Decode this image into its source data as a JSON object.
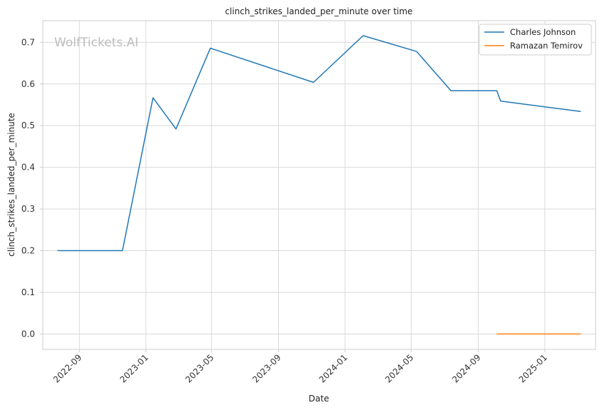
{
  "chart_data": {
    "type": "line",
    "title": "clinch_strikes_landed_per_minute over time",
    "xlabel": "Date",
    "ylabel": "clinch_strikes_landed_per_minute",
    "watermark": "WolfTickets.AI",
    "x_ticks": [
      "2022-09",
      "2023-01",
      "2023-05",
      "2023-09",
      "2024-01",
      "2024-05",
      "2024-09",
      "2025-01"
    ],
    "y_ticks": [
      "0.0",
      "0.1",
      "0.2",
      "0.3",
      "0.4",
      "0.5",
      "0.6",
      "0.7"
    ],
    "xlim": [
      "2022-06-26",
      "2025-04-04"
    ],
    "ylim": [
      -0.037,
      0.752
    ],
    "grid": true,
    "legend_position": "top-right",
    "series": [
      {
        "name": "Charles Johnson",
        "color": "#1f77b4",
        "points": [
          {
            "x": "2022-07-23",
            "y": 0.2
          },
          {
            "x": "2022-11-19",
            "y": 0.2
          },
          {
            "x": "2023-01-14",
            "y": 0.567
          },
          {
            "x": "2023-02-25",
            "y": 0.492
          },
          {
            "x": "2023-04-29",
            "y": 0.686
          },
          {
            "x": "2023-11-04",
            "y": 0.604
          },
          {
            "x": "2024-02-03",
            "y": 0.716
          },
          {
            "x": "2024-05-11",
            "y": 0.678
          },
          {
            "x": "2024-07-13",
            "y": 0.584
          },
          {
            "x": "2024-10-05",
            "y": 0.584
          },
          {
            "x": "2024-10-12",
            "y": 0.559
          },
          {
            "x": "2025-03-08",
            "y": 0.534
          }
        ]
      },
      {
        "name": "Ramazan Temirov",
        "color": "#ff7f0e",
        "points": [
          {
            "x": "2024-10-05",
            "y": 0.0
          },
          {
            "x": "2025-03-08",
            "y": 0.0
          }
        ]
      }
    ]
  }
}
